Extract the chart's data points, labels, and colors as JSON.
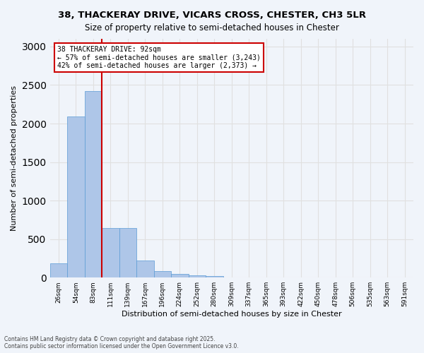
{
  "title_line1": "38, THACKERAY DRIVE, VICARS CROSS, CHESTER, CH3 5LR",
  "title_line2": "Size of property relative to semi-detached houses in Chester",
  "xlabel": "Distribution of semi-detached houses by size in Chester",
  "ylabel": "Number of semi-detached properties",
  "property_size": 92,
  "property_label": "38 THACKERAY DRIVE: 92sqm",
  "pct_smaller": 57,
  "pct_larger": 42,
  "count_smaller": "3,243",
  "count_larger": "2,373",
  "annotation_text_line1": "38 THACKERAY DRIVE: 92sqm",
  "annotation_text_line2": "← 57% of semi-detached houses are smaller (3,243)",
  "annotation_text_line3": "42% of semi-detached houses are larger (2,373) →",
  "bar_color": "#aec6e8",
  "bar_edge_color": "#5b9bd5",
  "grid_color": "#e0e0e0",
  "bg_color": "#f0f4fa",
  "vline_color": "#cc0000",
  "annotation_box_color": "#cc0000",
  "bin_labels": [
    "26sqm",
    "54sqm",
    "83sqm",
    "111sqm",
    "139sqm",
    "167sqm",
    "196sqm",
    "224sqm",
    "252sqm",
    "280sqm",
    "309sqm",
    "337sqm",
    "365sqm",
    "393sqm",
    "422sqm",
    "450sqm",
    "478sqm",
    "506sqm",
    "535sqm",
    "563sqm",
    "591sqm"
  ],
  "bar_heights": [
    185,
    2090,
    2420,
    645,
    645,
    225,
    85,
    45,
    30,
    20,
    0,
    0,
    0,
    0,
    0,
    0,
    0,
    0,
    0,
    0,
    0
  ],
  "ylim": [
    0,
    3100
  ],
  "yticks": [
    0,
    500,
    1000,
    1500,
    2000,
    2500,
    3000
  ],
  "footer_line1": "Contains HM Land Registry data © Crown copyright and database right 2025.",
  "footer_line2": "Contains public sector information licensed under the Open Government Licence v3.0."
}
